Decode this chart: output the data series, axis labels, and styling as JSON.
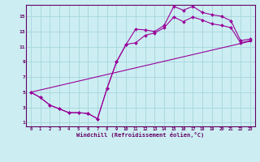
{
  "xlabel": "Windchill (Refroidissement éolien,°C)",
  "bg_color": "#cceef2",
  "grid_color": "#aad8de",
  "line_color": "#990099",
  "axis_color": "#660066",
  "xlim": [
    -0.5,
    23.5
  ],
  "ylim": [
    0.5,
    16.5
  ],
  "xticks": [
    0,
    1,
    2,
    3,
    4,
    5,
    6,
    7,
    8,
    9,
    10,
    11,
    12,
    13,
    14,
    15,
    16,
    17,
    18,
    19,
    20,
    21,
    22,
    23
  ],
  "yticks": [
    1,
    3,
    5,
    7,
    9,
    11,
    13,
    15
  ],
  "line1_x": [
    0,
    1,
    2,
    3,
    4,
    5,
    6,
    7,
    8,
    9,
    10,
    11,
    12,
    13,
    14,
    15,
    16,
    17,
    18,
    19,
    20,
    21,
    22,
    23
  ],
  "line1_y": [
    5.0,
    4.3,
    3.3,
    2.8,
    2.3,
    2.3,
    2.2,
    1.5,
    5.5,
    9.0,
    11.3,
    13.3,
    13.2,
    13.0,
    13.8,
    16.3,
    15.8,
    16.3,
    15.5,
    15.2,
    15.0,
    14.4,
    11.8,
    12.0
  ],
  "line2_x": [
    0,
    1,
    2,
    3,
    4,
    5,
    6,
    7,
    8,
    9,
    10,
    11,
    12,
    13,
    14,
    15,
    16,
    17,
    18,
    19,
    20,
    21,
    22,
    23
  ],
  "line2_y": [
    5.0,
    4.3,
    3.3,
    2.8,
    2.3,
    2.3,
    2.2,
    1.5,
    5.5,
    9.0,
    11.3,
    11.5,
    12.5,
    12.8,
    13.5,
    14.9,
    14.3,
    14.9,
    14.5,
    14.0,
    13.8,
    13.5,
    11.5,
    11.8
  ],
  "line3_x": [
    0,
    23
  ],
  "line3_y": [
    5.0,
    11.7
  ]
}
